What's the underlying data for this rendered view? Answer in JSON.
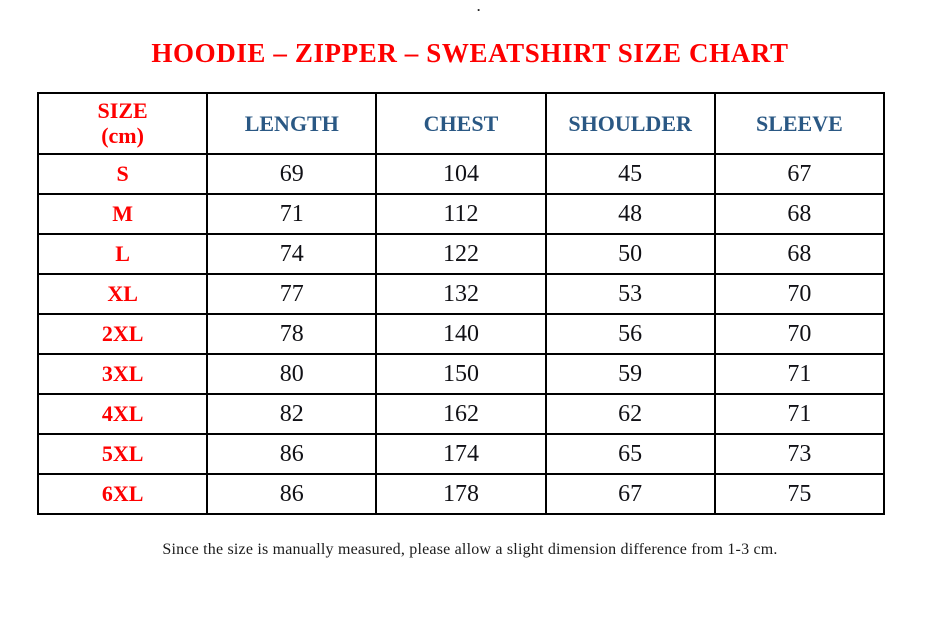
{
  "decor": {
    "stray_dot": "."
  },
  "title": "HOODIE – ZIPPER – SWEATSHIRT SIZE CHART",
  "table": {
    "headers": {
      "size_line1": "SIZE",
      "size_line2": "(cm)",
      "length": "LENGTH",
      "chest": "CHEST",
      "shoulder": "SHOULDER",
      "sleeve": "SLEEVE"
    },
    "rows": [
      {
        "size": "S",
        "length": 69,
        "chest": 104,
        "shoulder": 45,
        "sleeve": 67
      },
      {
        "size": "M",
        "length": 71,
        "chest": 112,
        "shoulder": 48,
        "sleeve": 68
      },
      {
        "size": "L",
        "length": 74,
        "chest": 122,
        "shoulder": 50,
        "sleeve": 68
      },
      {
        "size": "XL",
        "length": 77,
        "chest": 132,
        "shoulder": 53,
        "sleeve": 70
      },
      {
        "size": "2XL",
        "length": 78,
        "chest": 140,
        "shoulder": 56,
        "sleeve": 70
      },
      {
        "size": "3XL",
        "length": 80,
        "chest": 150,
        "shoulder": 59,
        "sleeve": 71
      },
      {
        "size": "4XL",
        "length": 82,
        "chest": 162,
        "shoulder": 62,
        "sleeve": 71
      },
      {
        "size": "5XL",
        "length": 86,
        "chest": 174,
        "shoulder": 65,
        "sleeve": 73
      },
      {
        "size": "6XL",
        "length": 86,
        "chest": 178,
        "shoulder": 67,
        "sleeve": 75
      }
    ]
  },
  "footnote": "Since the size is manually measured, please allow a slight dimension difference from 1-3 cm.",
  "colors": {
    "title_red": "#fe0000",
    "header_blue": "#2a5884",
    "value_black": "#111116",
    "border_black": "#000000",
    "background": "#ffffff"
  }
}
